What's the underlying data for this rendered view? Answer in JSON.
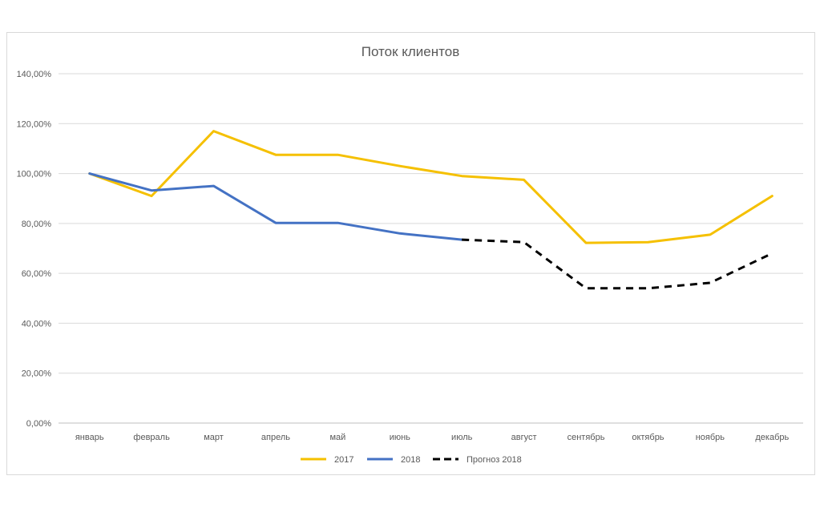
{
  "chart_data": {
    "type": "line",
    "title": "Поток клиентов",
    "categories": [
      "январь",
      "февраль",
      "март",
      "апрель",
      "май",
      "июнь",
      "июль",
      "август",
      "сентябрь",
      "октябрь",
      "ноябрь",
      "декабрь"
    ],
    "ylim": [
      0,
      140
    ],
    "yticks": [
      "0,00%",
      "20,00%",
      "40,00%",
      "60,00%",
      "80,00%",
      "100,00%",
      "120,00%",
      "140,00%"
    ],
    "grid": true,
    "legend_position": "bottom",
    "series": [
      {
        "name": "2017",
        "color": "#f5c000",
        "style": "solid",
        "values": [
          100,
          91,
          117,
          107.5,
          107.5,
          103,
          99,
          97.5,
          72.2,
          72.5,
          75.5,
          91
        ]
      },
      {
        "name": "2018",
        "color": "#4472c4",
        "style": "solid",
        "values": [
          100,
          93.2,
          95,
          80.2,
          80.2,
          76,
          73.5,
          null,
          null,
          null,
          null,
          null
        ]
      },
      {
        "name": "Прогноз 2018",
        "color": "#000000",
        "style": "dashed",
        "values": [
          null,
          null,
          null,
          null,
          null,
          null,
          73.5,
          72.5,
          54,
          54,
          56.2,
          68
        ]
      }
    ]
  }
}
